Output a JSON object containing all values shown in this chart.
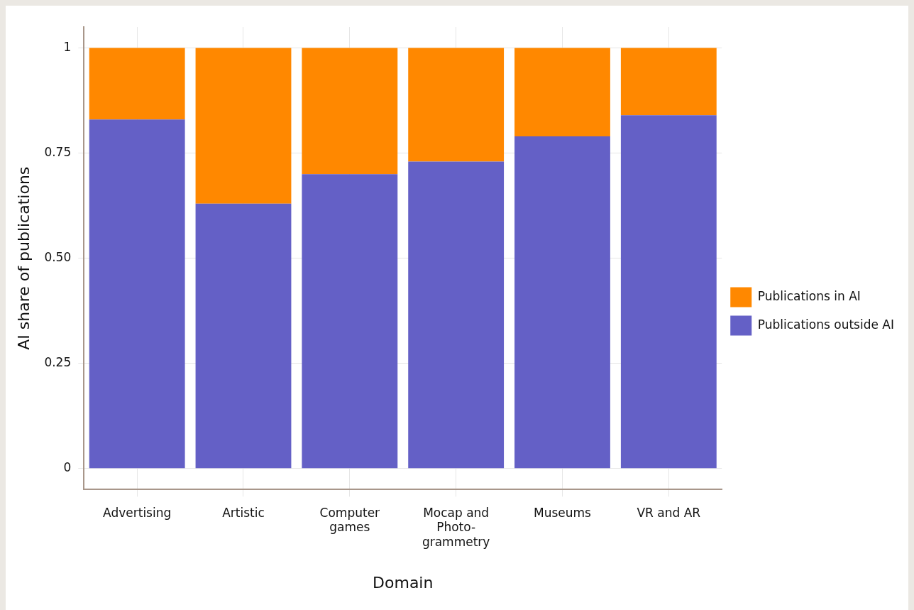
{
  "chart_data": {
    "type": "bar",
    "stacked": true,
    "xlabel": "Domain",
    "ylabel": "AI share of publications",
    "categories": [
      "Advertising",
      "Artistic",
      "Computer games",
      "Mocap and Photo-grammetry",
      "Museums",
      "VR and AR"
    ],
    "series": [
      {
        "name": "Publications outside AI",
        "color": "#6460c6",
        "values": [
          0.83,
          0.63,
          0.7,
          0.73,
          0.79,
          0.84
        ]
      },
      {
        "name": "Publications in AI",
        "color": "#ff8800",
        "values": [
          0.17,
          0.37,
          0.3,
          0.27,
          0.21,
          0.16
        ]
      }
    ],
    "ylim": [
      -0.05,
      1.05
    ],
    "yticks": [
      0,
      0.25,
      {
        "value": 0.5,
        "label": "0.50"
      },
      0.75,
      1
    ],
    "grid": true,
    "legend": "right"
  }
}
